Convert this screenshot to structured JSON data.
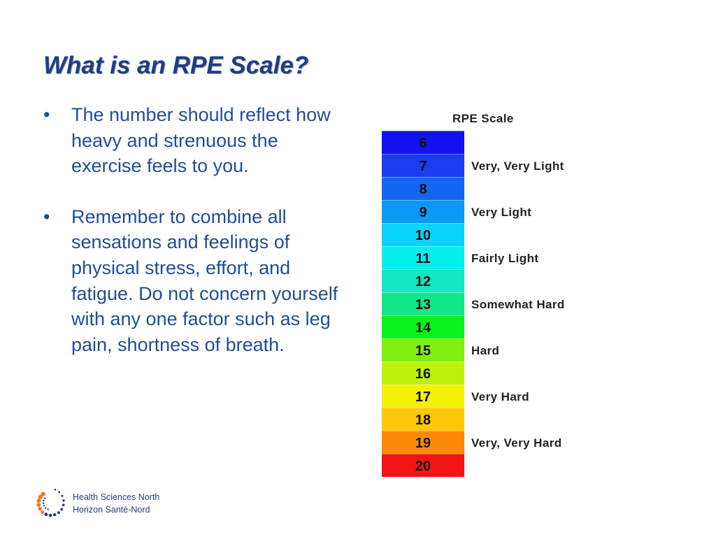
{
  "slide": {
    "title": "What is an RPE Scale?",
    "bullet_char": "•",
    "bullets": [
      "The number should reflect how heavy and strenuous the exercise feels to you.",
      "Remember to combine all sensations and feelings of physical stress, effort, and fatigue.  Do not concern yourself with any one factor such as leg pain, shortness of breath."
    ]
  },
  "rpe": {
    "title": "RPE Scale",
    "rows": [
      {
        "num": "6",
        "label": "",
        "color": "#1212f0"
      },
      {
        "num": "7",
        "label": "Very, Very Light",
        "color": "#1a3cf0"
      },
      {
        "num": "8",
        "label": "",
        "color": "#1466f2"
      },
      {
        "num": "9",
        "label": "Very Light",
        "color": "#0e98f5"
      },
      {
        "num": "10",
        "label": "",
        "color": "#0ad2fa"
      },
      {
        "num": "11",
        "label": "Fairly Light",
        "color": "#05eef0"
      },
      {
        "num": "12",
        "label": "",
        "color": "#12e6c2"
      },
      {
        "num": "13",
        "label": "Somewhat Hard",
        "color": "#14e68a"
      },
      {
        "num": "14",
        "label": "",
        "color": "#0af21e"
      },
      {
        "num": "15",
        "label": "Hard",
        "color": "#80f010"
      },
      {
        "num": "16",
        "label": "",
        "color": "#bef20c"
      },
      {
        "num": "17",
        "label": "Very Hard",
        "color": "#f2f208"
      },
      {
        "num": "18",
        "label": "",
        "color": "#fcc808"
      },
      {
        "num": "19",
        "label": "Very, Very Hard",
        "color": "#fc8a08"
      },
      {
        "num": "20",
        "label": "",
        "color": "#f21414"
      }
    ]
  },
  "logo": {
    "line1": "Health Sciences North",
    "line2": "Horizon Santé-Nord",
    "colors": {
      "blue": "#1f3c88",
      "orange": "#f07a22"
    }
  }
}
